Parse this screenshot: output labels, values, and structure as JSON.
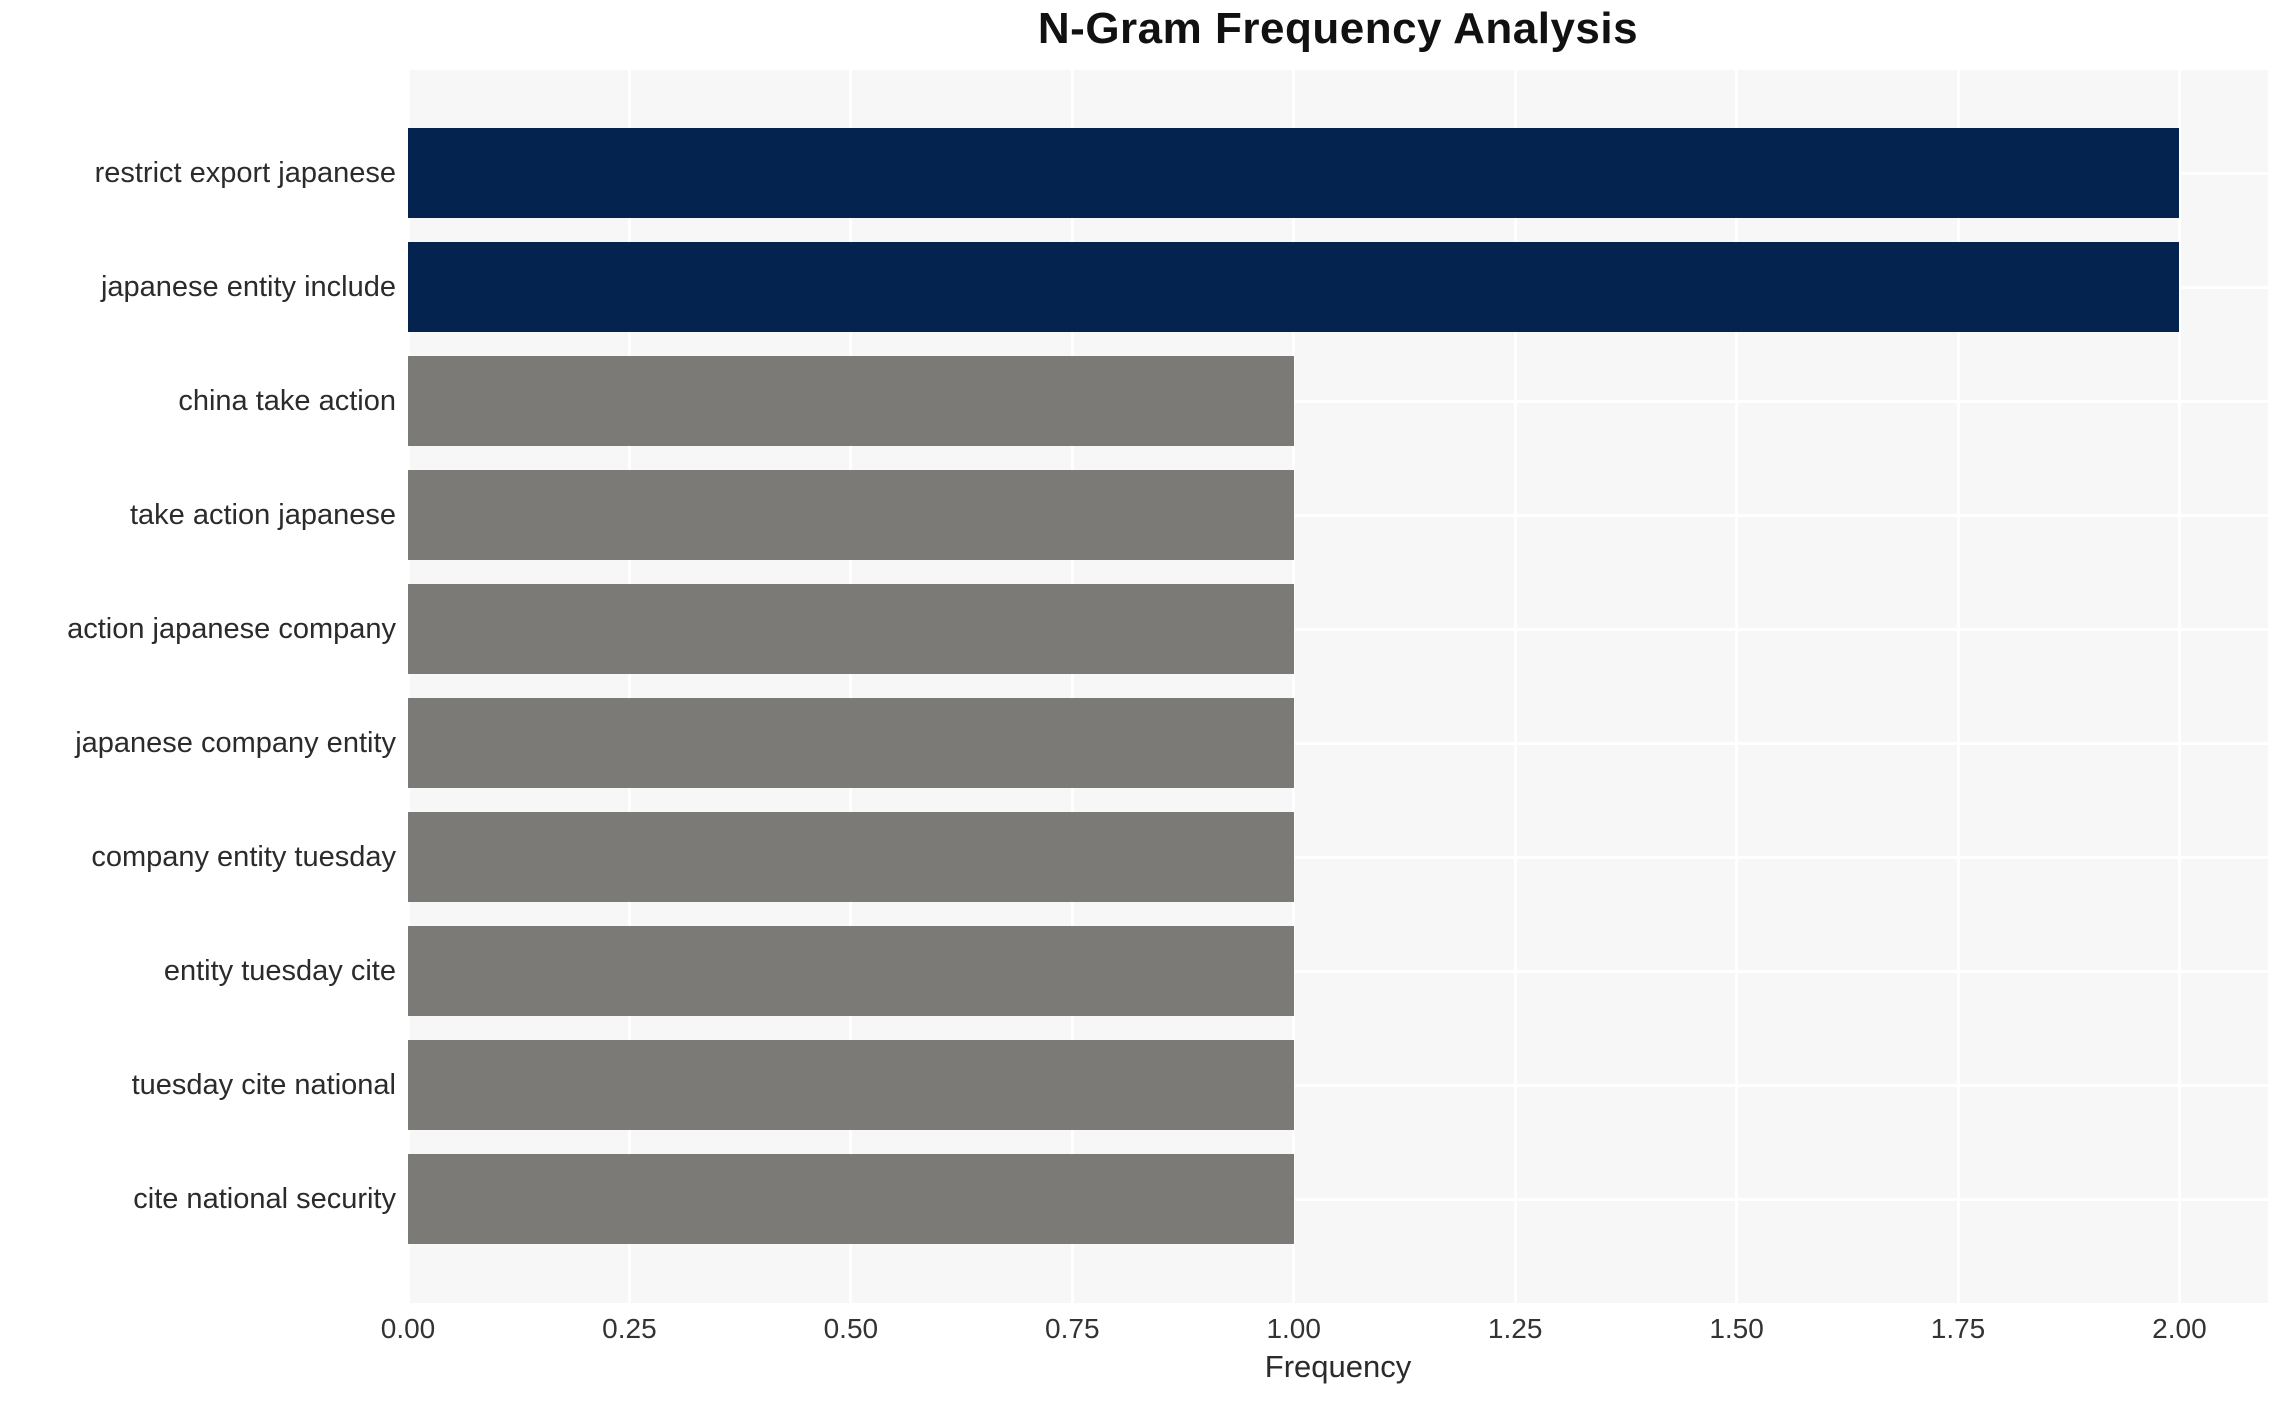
{
  "chart_data": {
    "type": "bar",
    "orientation": "horizontal",
    "title": "N-Gram Frequency Analysis",
    "xlabel": "Frequency",
    "ylabel": "",
    "categories": [
      "restrict export japanese",
      "japanese entity include",
      "china take action",
      "take action japanese",
      "action japanese company",
      "japanese company entity",
      "company entity tuesday",
      "entity tuesday cite",
      "tuesday cite national",
      "cite national security"
    ],
    "values": [
      2,
      2,
      1,
      1,
      1,
      1,
      1,
      1,
      1,
      1
    ],
    "bar_colors": [
      "#04234e",
      "#04234e",
      "#7b7a77",
      "#7b7a77",
      "#7b7a77",
      "#7b7a77",
      "#7b7a77",
      "#7b7a77",
      "#7b7a77",
      "#7b7a77"
    ],
    "x_ticks": [
      "0.00",
      "0.25",
      "0.50",
      "0.75",
      "1.00",
      "1.25",
      "1.50",
      "1.75",
      "2.00"
    ],
    "x_tick_values": [
      0,
      0.25,
      0.5,
      0.75,
      1.0,
      1.25,
      1.5,
      1.75,
      2.0
    ],
    "xlim": [
      0,
      2.1
    ],
    "grid": true,
    "legend": false,
    "colors": {
      "high_value_bar": "#04234e",
      "low_value_bar": "#7b7a77",
      "plot_background": "#f7f7f7",
      "gridline": "#ffffff",
      "figure_background": "#ffffff",
      "title_text": "#111111",
      "label_text": "#2b2b2b",
      "tick_text": "#333333"
    }
  }
}
